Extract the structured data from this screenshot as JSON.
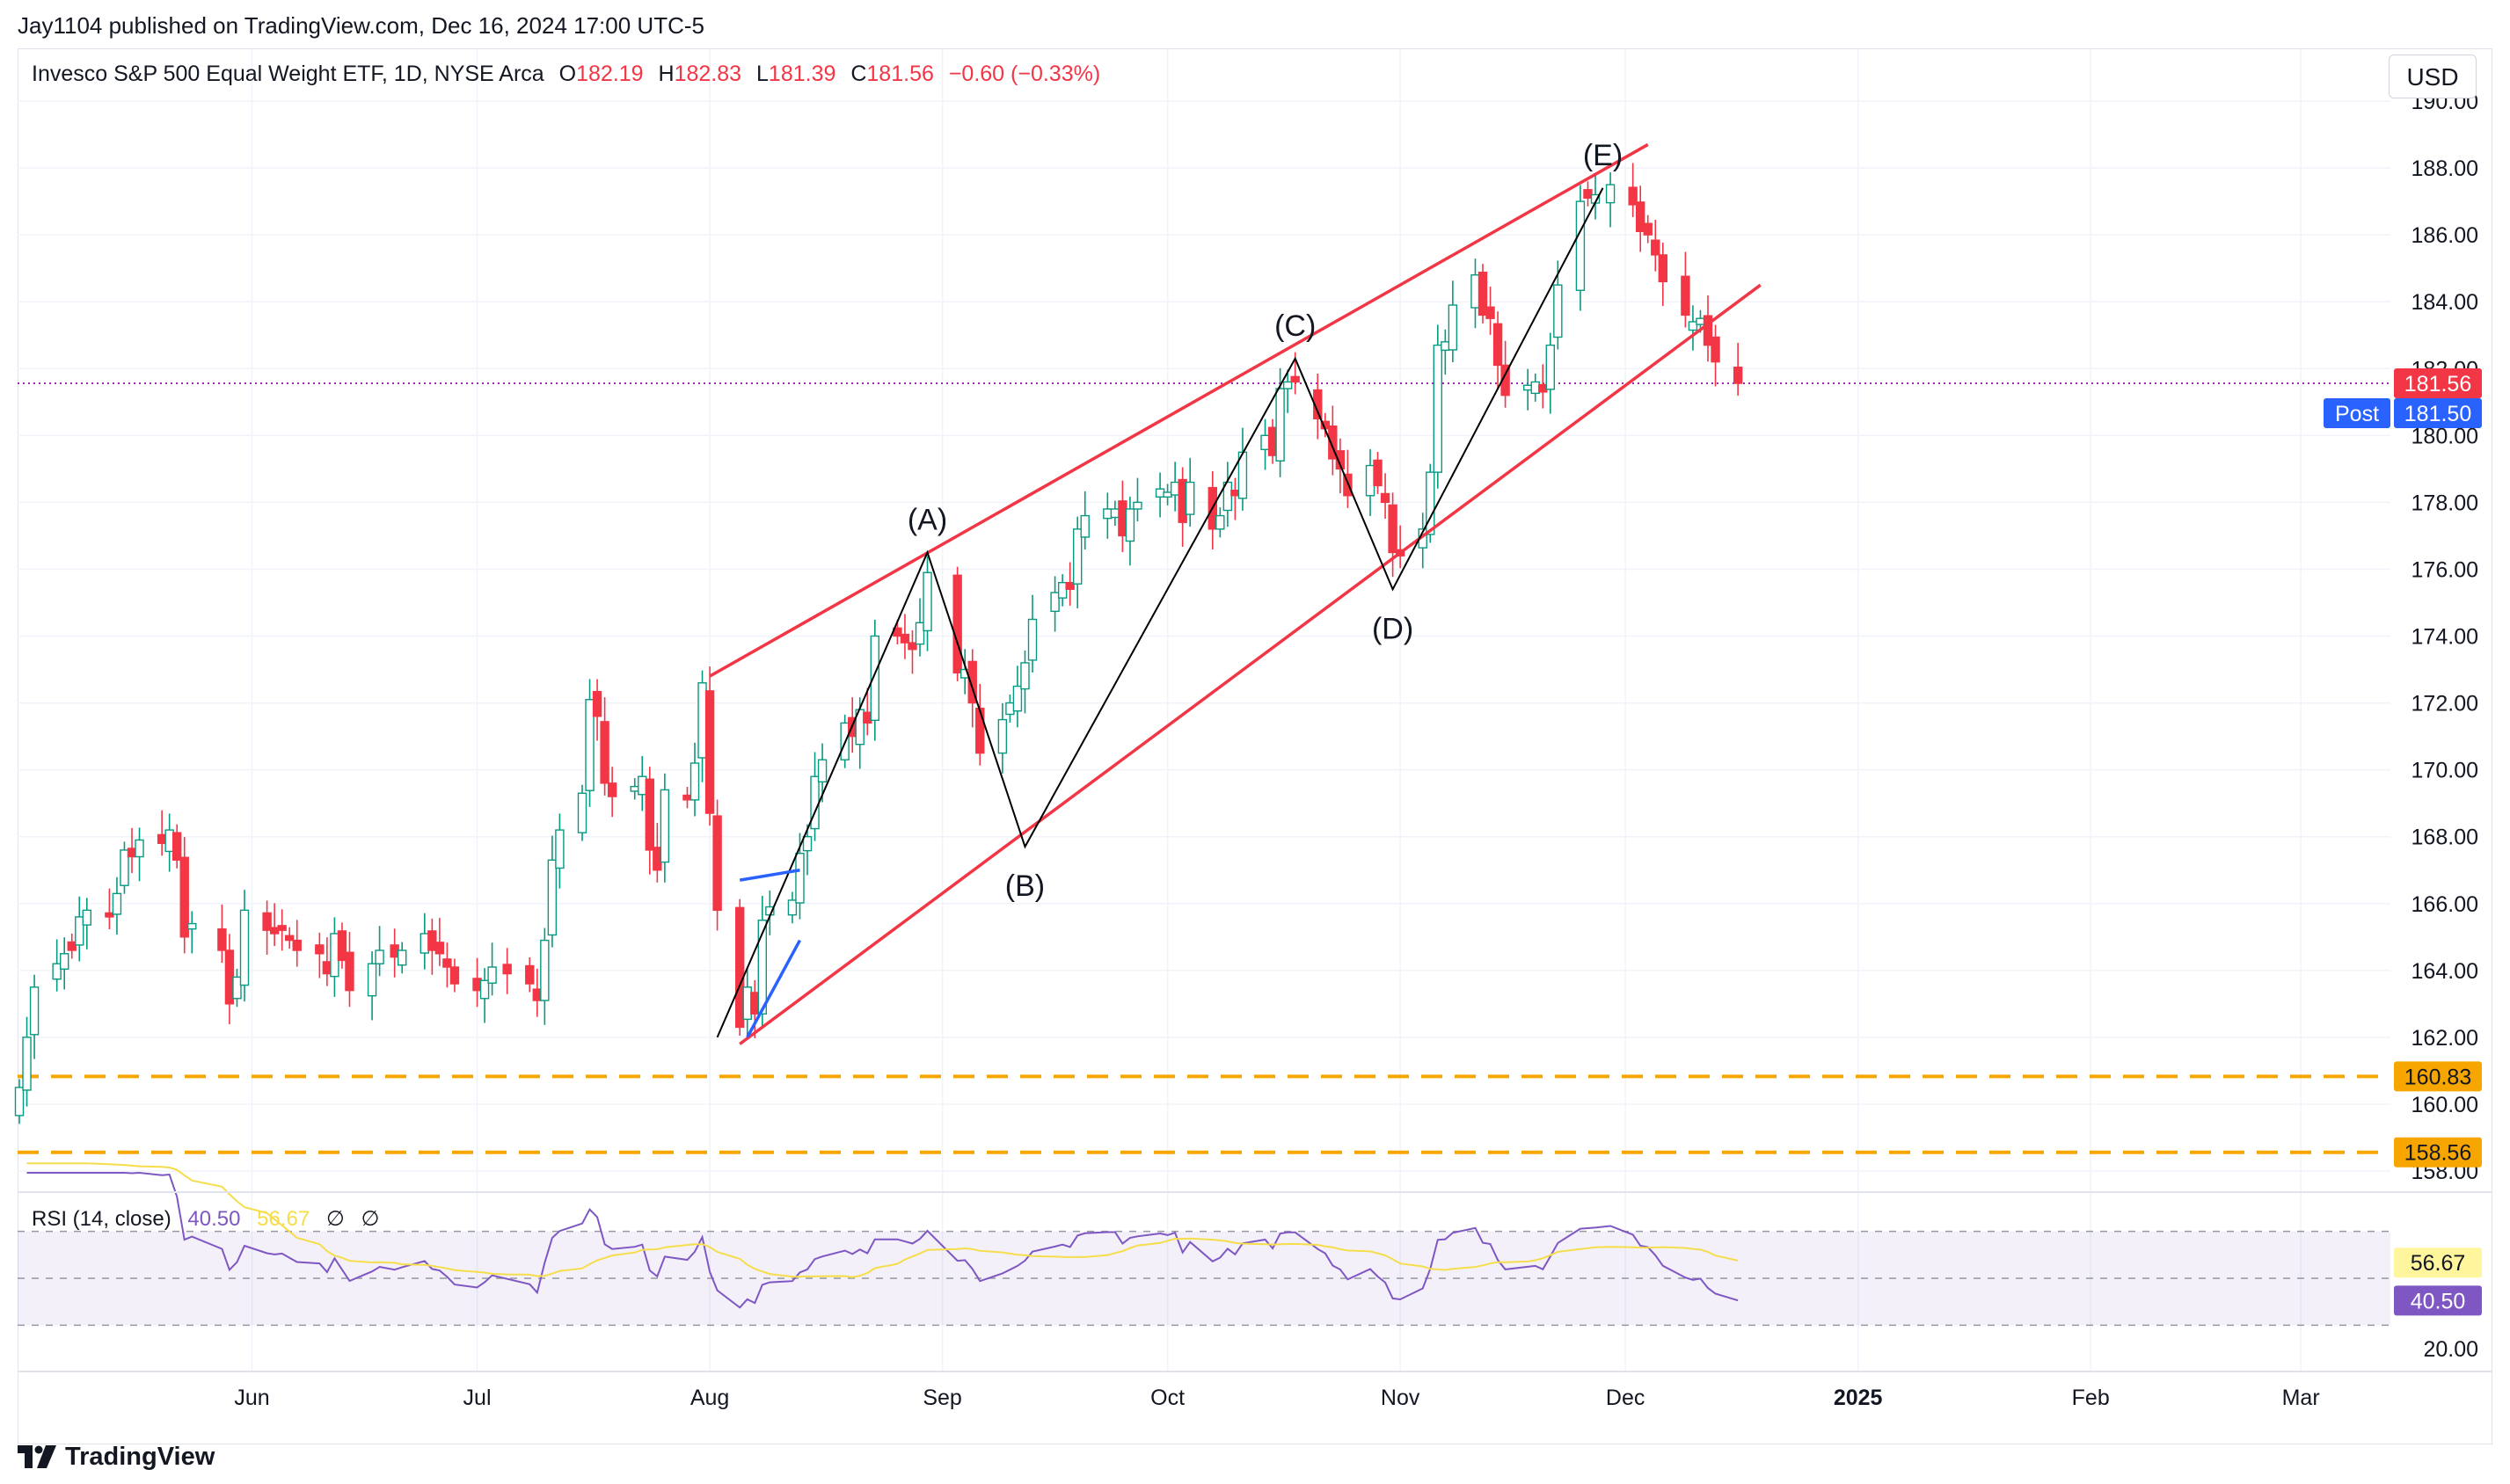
{
  "header": {
    "publisher": "Jay1104 published on TradingView.com, Dec 16, 2024 17:00 UTC-5",
    "instrument": "Invesco S&P 500 Equal Weight ETF, 1D, NYSE Arca",
    "ohlc": {
      "o_label": "O",
      "o": "182.19",
      "h_label": "H",
      "h": "182.83",
      "l_label": "L",
      "l": "181.39",
      "c_label": "C",
      "c": "181.56",
      "change": "−0.60 (−0.33%)"
    },
    "currency": "USD"
  },
  "rsi_legend": {
    "label": "RSI (14, close)",
    "rsi": "40.50",
    "ma": "56.67",
    "extra1": "∅",
    "extra2": "∅"
  },
  "price_labels": {
    "last": "181.56",
    "post_tag": "Post",
    "post": "181.50",
    "level1": "160.83",
    "level2": "158.56",
    "rsi_ma": "56.67",
    "rsi_val": "40.50"
  },
  "brand": "TradingView",
  "colors": {
    "up": "#089981",
    "down": "#f23645",
    "channel": "#f23645",
    "wave": "#000000",
    "blue_line": "#2962ff",
    "support": "#f7a600",
    "rsi": "#7e57c2",
    "rsi_ma": "#f5dd4b",
    "last_price_dot": "#9c27b0"
  },
  "chart_data": {
    "type": "candlestick",
    "title": "",
    "y_axis": {
      "min": 158,
      "max": 190,
      "ticks": [
        "158.00",
        "160.00",
        "162.00",
        "164.00",
        "166.00",
        "168.00",
        "170.00",
        "172.00",
        "174.00",
        "176.00",
        "178.00",
        "180.00",
        "182.00",
        "184.00",
        "186.00",
        "188.00",
        "190.00"
      ]
    },
    "x_axis": {
      "start": "2024-05-01",
      "end": "2025-03-12",
      "ticks": [
        {
          "date": "2024-06-01",
          "label": "Jun"
        },
        {
          "date": "2024-07-01",
          "label": "Jul"
        },
        {
          "date": "2024-08-01",
          "label": "Aug"
        },
        {
          "date": "2024-09-01",
          "label": "Sep"
        },
        {
          "date": "2024-10-01",
          "label": "Oct"
        },
        {
          "date": "2024-11-01",
          "label": "Nov"
        },
        {
          "date": "2024-12-01",
          "label": "Dec"
        },
        {
          "date": "2025-01-01",
          "label": "2025",
          "bold": true
        },
        {
          "date": "2025-02-01",
          "label": "Feb"
        },
        {
          "date": "2025-03-01",
          "label": "Mar"
        }
      ]
    },
    "grid": true,
    "closes": [
      [
        "2024-05-01",
        160.5
      ],
      [
        "2024-05-02",
        162.0
      ],
      [
        "2024-05-03",
        163.5
      ],
      [
        "2024-05-06",
        164.2
      ],
      [
        "2024-05-07",
        164.5
      ],
      [
        "2024-05-08",
        164.6
      ],
      [
        "2024-05-09",
        165.6
      ],
      [
        "2024-05-10",
        165.8
      ],
      [
        "2024-05-13",
        165.6
      ],
      [
        "2024-05-14",
        166.3
      ],
      [
        "2024-05-15",
        167.6
      ],
      [
        "2024-05-16",
        167.4
      ],
      [
        "2024-05-17",
        167.9
      ],
      [
        "2024-05-20",
        167.8
      ],
      [
        "2024-05-21",
        168.2
      ],
      [
        "2024-05-22",
        167.3
      ],
      [
        "2024-05-23",
        165.0
      ],
      [
        "2024-05-24",
        165.4
      ],
      [
        "2024-05-28",
        164.6
      ],
      [
        "2024-05-29",
        163.0
      ],
      [
        "2024-05-30",
        163.8
      ],
      [
        "2024-05-31",
        165.8
      ],
      [
        "2024-06-03",
        165.2
      ],
      [
        "2024-06-04",
        165.1
      ],
      [
        "2024-06-05",
        165.2
      ],
      [
        "2024-06-06",
        164.9
      ],
      [
        "2024-06-07",
        164.6
      ],
      [
        "2024-06-10",
        164.5
      ],
      [
        "2024-06-11",
        163.9
      ],
      [
        "2024-06-12",
        165.1
      ],
      [
        "2024-06-13",
        164.3
      ],
      [
        "2024-06-14",
        163.4
      ],
      [
        "2024-06-17",
        164.2
      ],
      [
        "2024-06-18",
        164.6
      ],
      [
        "2024-06-20",
        164.4
      ],
      [
        "2024-06-21",
        164.6
      ],
      [
        "2024-06-24",
        165.1
      ],
      [
        "2024-06-25",
        164.6
      ],
      [
        "2024-06-26",
        164.5
      ],
      [
        "2024-06-27",
        164.1
      ],
      [
        "2024-06-28",
        163.6
      ],
      [
        "2024-07-01",
        163.4
      ],
      [
        "2024-07-02",
        163.7
      ],
      [
        "2024-07-03",
        164.1
      ],
      [
        "2024-07-05",
        163.9
      ],
      [
        "2024-07-08",
        163.6
      ],
      [
        "2024-07-09",
        163.1
      ],
      [
        "2024-07-10",
        164.9
      ],
      [
        "2024-07-11",
        167.3
      ],
      [
        "2024-07-12",
        168.2
      ],
      [
        "2024-07-15",
        169.3
      ],
      [
        "2024-07-16",
        172.1
      ],
      [
        "2024-07-17",
        171.6
      ],
      [
        "2024-07-18",
        169.6
      ],
      [
        "2024-07-19",
        169.2
      ],
      [
        "2024-07-22",
        169.5
      ],
      [
        "2024-07-23",
        169.8
      ],
      [
        "2024-07-24",
        167.6
      ],
      [
        "2024-07-25",
        167.0
      ],
      [
        "2024-07-26",
        169.4
      ],
      [
        "2024-07-29",
        169.1
      ],
      [
        "2024-07-30",
        170.2
      ],
      [
        "2024-07-31",
        172.6
      ],
      [
        "2024-08-01",
        168.7
      ],
      [
        "2024-08-02",
        165.8
      ],
      [
        "2024-08-05",
        162.3
      ],
      [
        "2024-08-06",
        163.5
      ],
      [
        "2024-08-07",
        162.7
      ],
      [
        "2024-08-08",
        165.5
      ],
      [
        "2024-08-09",
        165.9
      ],
      [
        "2024-08-12",
        166.1
      ],
      [
        "2024-08-13",
        167.5
      ],
      [
        "2024-08-14",
        168.0
      ],
      [
        "2024-08-15",
        169.8
      ],
      [
        "2024-08-16",
        170.3
      ],
      [
        "2024-08-19",
        171.4
      ],
      [
        "2024-08-20",
        171.0
      ],
      [
        "2024-08-21",
        171.8
      ],
      [
        "2024-08-22",
        171.4
      ],
      [
        "2024-08-23",
        174.0
      ],
      [
        "2024-08-26",
        174.0
      ],
      [
        "2024-08-27",
        173.8
      ],
      [
        "2024-08-28",
        173.6
      ],
      [
        "2024-08-29",
        174.4
      ],
      [
        "2024-08-30",
        175.9
      ],
      [
        "2024-09-03",
        172.9
      ],
      [
        "2024-09-04",
        173.0
      ],
      [
        "2024-09-05",
        172.0
      ],
      [
        "2024-09-06",
        170.5
      ],
      [
        "2024-09-09",
        171.5
      ],
      [
        "2024-09-10",
        172.0
      ],
      [
        "2024-09-11",
        172.5
      ],
      [
        "2024-09-12",
        173.2
      ],
      [
        "2024-09-13",
        174.5
      ],
      [
        "2024-09-16",
        175.3
      ],
      [
        "2024-09-17",
        175.6
      ],
      [
        "2024-09-18",
        175.4
      ],
      [
        "2024-09-19",
        177.2
      ],
      [
        "2024-09-20",
        177.6
      ],
      [
        "2024-09-23",
        177.8
      ],
      [
        "2024-09-24",
        177.8
      ],
      [
        "2024-09-25",
        177.0
      ],
      [
        "2024-09-26",
        177.8
      ],
      [
        "2024-09-27",
        178.0
      ],
      [
        "2024-09-30",
        178.4
      ],
      [
        "2024-10-01",
        178.3
      ],
      [
        "2024-10-02",
        178.6
      ],
      [
        "2024-10-03",
        177.4
      ],
      [
        "2024-10-04",
        178.6
      ],
      [
        "2024-10-07",
        177.2
      ],
      [
        "2024-10-08",
        177.6
      ],
      [
        "2024-10-09",
        178.6
      ],
      [
        "2024-10-10",
        178.2
      ],
      [
        "2024-10-11",
        179.5
      ],
      [
        "2024-10-14",
        180.0
      ],
      [
        "2024-10-15",
        179.4
      ],
      [
        "2024-10-16",
        181.4
      ],
      [
        "2024-10-17",
        181.6
      ],
      [
        "2024-10-18",
        181.6
      ],
      [
        "2024-10-21",
        180.5
      ],
      [
        "2024-10-22",
        180.2
      ],
      [
        "2024-10-23",
        179.3
      ],
      [
        "2024-10-24",
        179.0
      ],
      [
        "2024-10-25",
        178.2
      ],
      [
        "2024-10-28",
        179.1
      ],
      [
        "2024-10-29",
        178.5
      ],
      [
        "2024-10-30",
        178.0
      ],
      [
        "2024-10-31",
        176.5
      ],
      [
        "2024-11-01",
        176.4
      ],
      [
        "2024-11-04",
        177.2
      ],
      [
        "2024-11-05",
        178.9
      ],
      [
        "2024-11-06",
        182.7
      ],
      [
        "2024-11-07",
        182.8
      ],
      [
        "2024-11-08",
        183.9
      ],
      [
        "2024-11-11",
        184.8
      ],
      [
        "2024-11-12",
        183.6
      ],
      [
        "2024-11-13",
        183.5
      ],
      [
        "2024-11-14",
        182.1
      ],
      [
        "2024-11-15",
        181.2
      ],
      [
        "2024-11-18",
        181.5
      ],
      [
        "2024-11-19",
        181.6
      ],
      [
        "2024-11-20",
        181.3
      ],
      [
        "2024-11-21",
        182.7
      ],
      [
        "2024-11-22",
        184.5
      ],
      [
        "2024-11-25",
        187.0
      ],
      [
        "2024-11-26",
        187.1
      ],
      [
        "2024-11-27",
        187.2
      ],
      [
        "2024-11-29",
        187.5
      ],
      [
        "2024-12-02",
        186.9
      ],
      [
        "2024-12-03",
        186.1
      ],
      [
        "2024-12-04",
        186.0
      ],
      [
        "2024-12-05",
        185.4
      ],
      [
        "2024-12-06",
        184.6
      ],
      [
        "2024-12-09",
        183.6
      ],
      [
        "2024-12-10",
        183.4
      ],
      [
        "2024-12-11",
        183.5
      ],
      [
        "2024-12-12",
        182.7
      ],
      [
        "2024-12-13",
        182.2
      ],
      [
        "2024-12-16",
        181.56
      ]
    ],
    "support_levels": [
      160.83,
      158.56
    ],
    "channel": {
      "upper": [
        [
          "2024-08-01",
          172.8
        ],
        [
          "2024-12-04",
          188.7
        ]
      ],
      "lower": [
        [
          "2024-08-05",
          161.8
        ],
        [
          "2024-12-19",
          184.5
        ]
      ]
    },
    "wave_path": [
      [
        "2024-08-02",
        162.0
      ],
      [
        "2024-08-30",
        176.5
      ],
      [
        "2024-09-12",
        167.7
      ],
      [
        "2024-10-18",
        182.3
      ],
      [
        "2024-10-31",
        175.4
      ],
      [
        "2024-11-28",
        187.4
      ]
    ],
    "wave_labels": [
      {
        "text": "(A)",
        "date": "2024-08-30",
        "value": 176.5,
        "pos": "above"
      },
      {
        "text": "(B)",
        "date": "2024-09-12",
        "value": 167.7,
        "pos": "below"
      },
      {
        "text": "(C)",
        "date": "2024-10-18",
        "value": 182.3,
        "pos": "above"
      },
      {
        "text": "(D)",
        "date": "2024-10-31",
        "value": 175.4,
        "pos": "below"
      },
      {
        "text": "(E)",
        "date": "2024-11-28",
        "value": 187.4,
        "pos": "above"
      }
    ],
    "blue_lines": [
      [
        [
          "2024-08-05",
          166.7
        ],
        [
          "2024-08-13",
          167.0
        ]
      ],
      [
        [
          "2024-08-06",
          162.0
        ],
        [
          "2024-08-13",
          164.9
        ]
      ]
    ],
    "rsi": {
      "period": 14,
      "levels": [
        70,
        50,
        30
      ],
      "y_axis": {
        "min": 20,
        "max": 80,
        "ticks": [
          "20.00"
        ]
      },
      "last_value": 40.5,
      "last_ma": 56.67
    }
  }
}
